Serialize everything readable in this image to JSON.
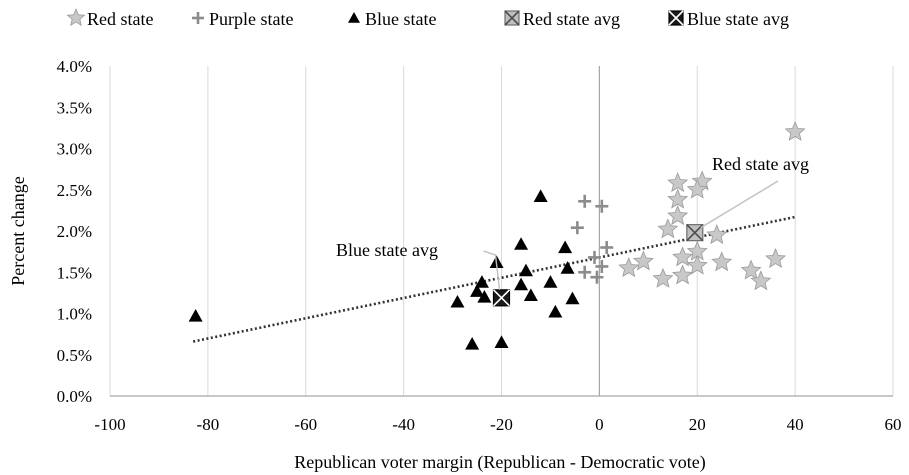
{
  "chart_data": {
    "type": "scatter",
    "xlabel": "Republican voter margin (Republican - Democratic vote)",
    "ylabel": "Percent change",
    "xlim": [
      -100,
      60
    ],
    "ylim": [
      0,
      4
    ],
    "x_ticks": [
      -100,
      -80,
      -60,
      -40,
      -20,
      0,
      20,
      40,
      60
    ],
    "x_tick_labels": [
      "-100",
      "-80",
      "-60",
      "-40",
      "-20",
      "0",
      "20",
      "40",
      "60"
    ],
    "y_ticks": [
      0,
      0.5,
      1.0,
      1.5,
      2.0,
      2.5,
      3.0,
      3.5,
      4.0
    ],
    "y_tick_labels": [
      "0.0%",
      "0.5%",
      "1.0%",
      "1.5%",
      "2.0%",
      "2.5%",
      "3.0%",
      "3.5%",
      "4.0%"
    ],
    "grid": "vertical",
    "legend_position": "top",
    "series": [
      {
        "name": "Red state",
        "marker": "star",
        "color": "#c8c8c8",
        "points": [
          [
            40,
            3.2
          ],
          [
            16,
            2.58
          ],
          [
            21,
            2.6
          ],
          [
            20,
            2.5
          ],
          [
            16,
            2.38
          ],
          [
            16,
            2.18
          ],
          [
            14,
            2.02
          ],
          [
            24,
            1.95
          ],
          [
            17,
            1.68
          ],
          [
            20,
            1.75
          ],
          [
            6,
            1.55
          ],
          [
            9,
            1.63
          ],
          [
            13,
            1.42
          ],
          [
            17,
            1.46
          ],
          [
            20,
            1.58
          ],
          [
            25,
            1.62
          ],
          [
            31,
            1.52
          ],
          [
            33,
            1.39
          ],
          [
            36,
            1.66
          ]
        ]
      },
      {
        "name": "Purple state",
        "marker": "plus",
        "color": "#8c8c8c",
        "points": [
          [
            -3,
            2.36
          ],
          [
            0.5,
            2.3
          ],
          [
            -4.5,
            2.04
          ],
          [
            1.5,
            1.8
          ],
          [
            -1,
            1.68
          ],
          [
            0.5,
            1.57
          ],
          [
            -3,
            1.5
          ],
          [
            -0.5,
            1.44
          ]
        ]
      },
      {
        "name": "Blue state",
        "marker": "triangle",
        "color": "#000000",
        "points": [
          [
            -82.5,
            0.97
          ],
          [
            -12,
            2.42
          ],
          [
            -16,
            1.84
          ],
          [
            -7,
            1.8
          ],
          [
            -21,
            1.62
          ],
          [
            -15,
            1.52
          ],
          [
            -6.5,
            1.55
          ],
          [
            -24,
            1.38
          ],
          [
            -16,
            1.35
          ],
          [
            -10,
            1.38
          ],
          [
            -25,
            1.27
          ],
          [
            -23.5,
            1.2
          ],
          [
            -14,
            1.22
          ],
          [
            -29,
            1.14
          ],
          [
            -5.5,
            1.18
          ],
          [
            -9,
            1.02
          ],
          [
            -26,
            0.63
          ],
          [
            -20,
            0.65
          ]
        ]
      },
      {
        "name": "Red state avg",
        "marker": "boxed-x-light",
        "color": "#808080",
        "points": [
          [
            19.5,
            1.98
          ]
        ]
      },
      {
        "name": "Blue state avg",
        "marker": "boxed-x-dark",
        "color": "#1a1a1a",
        "points": [
          [
            -20,
            1.19
          ]
        ]
      }
    ],
    "trendline": {
      "style": "dotted",
      "color": "#333333",
      "from": [
        -83,
        0.66
      ],
      "to": [
        40,
        2.17
      ]
    },
    "annotations": [
      {
        "text": "Red state avg",
        "points_to_series": "Red state avg"
      },
      {
        "text": "Blue  state avg",
        "points_to_series": "Blue state avg"
      }
    ]
  }
}
